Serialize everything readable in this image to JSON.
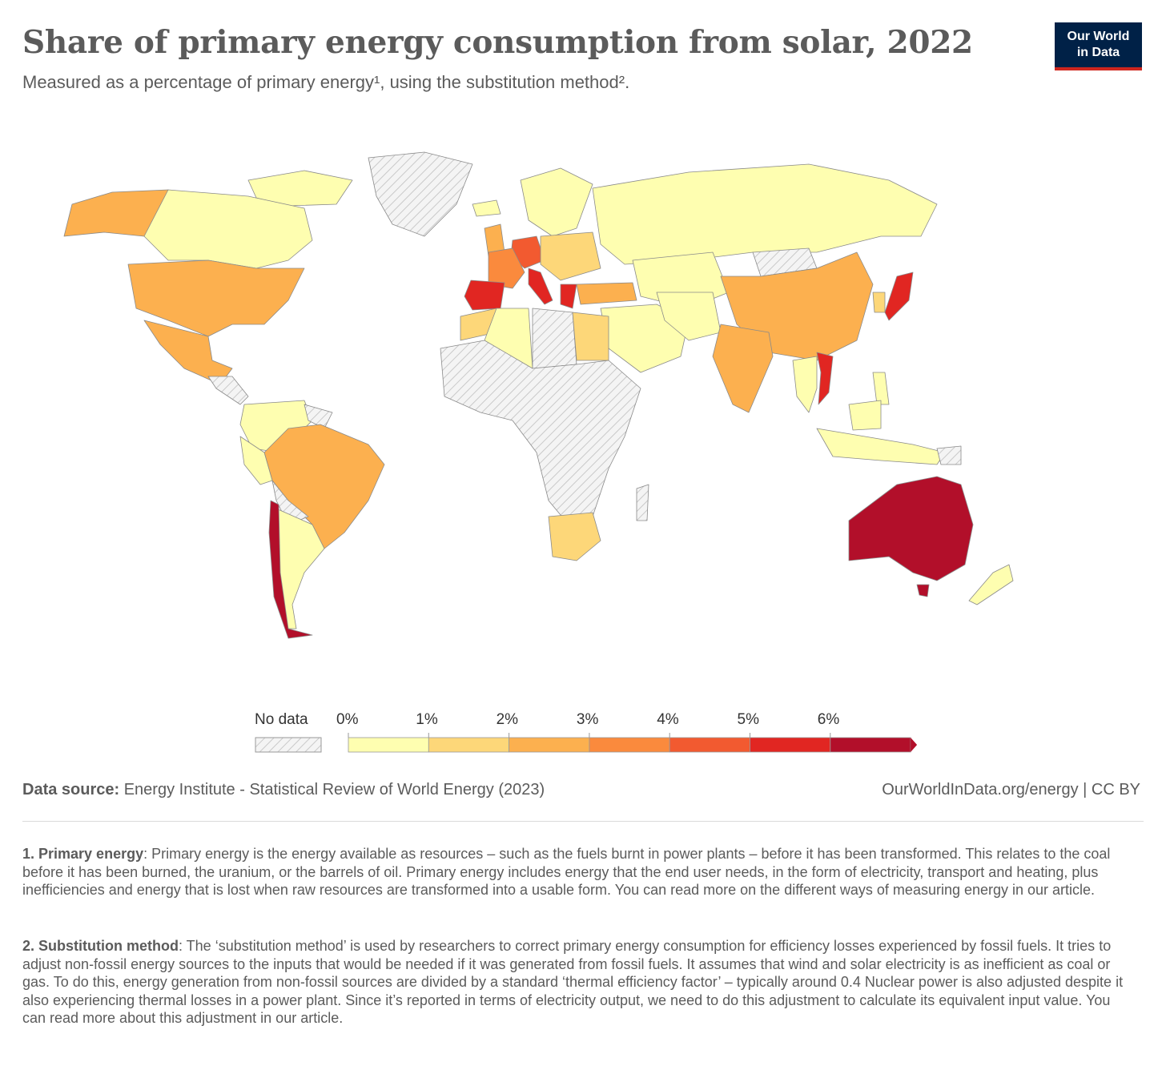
{
  "header": {
    "title": "Share of primary energy consumption from solar, 2022",
    "subtitle": "Measured as a percentage of primary energy¹, using the substitution method².",
    "logo_line1": "Our World",
    "logo_line2": "in Data"
  },
  "legend": {
    "no_data_label": "No data",
    "bins": [
      "0%",
      "1%",
      "2%",
      "3%",
      "4%",
      "5%",
      "6%"
    ],
    "colors": [
      "#fefeb0",
      "#fdd779",
      "#fcb04f",
      "#fa8a3d",
      "#f25a30",
      "#e12622",
      "#b20f2a"
    ],
    "no_data_color": "#cccccc"
  },
  "footer": {
    "source_label": "Data source:",
    "source_text": "Energy Institute - Statistical Review of World Energy (2023)",
    "url": "OurWorldInData.org/energy | CC BY"
  },
  "notes": [
    {
      "label": "1. Primary energy",
      "text": ": Primary energy is the energy available as resources – such as the fuels burnt in power plants – before it has been transformed. This relates to the coal before it has been burned, the uranium, or the barrels of oil. Primary energy includes energy that the end user needs, in the form of electricity, transport and heating, plus inefficiencies and energy that is lost when raw resources are transformed into a usable form. You can read more on the different ways of measuring energy in our article."
    },
    {
      "label": "2. Substitution method",
      "text": ": The ‘substitution method’ is used by researchers to correct primary energy consumption for efficiency losses experienced by fossil fuels. It tries to adjust non-fossil energy sources to the inputs that would be needed if it was generated from fossil fuels. It assumes that wind and solar electricity is as inefficient as coal or gas. To do this, energy generation from non-fossil sources are divided by a standard ‘thermal efficiency factor’ – typically around 0.4 Nuclear power is also adjusted despite it also experiencing thermal losses in a power plant. Since it’s reported in terms of electricity output, we need to do this adjustment to calculate its equivalent input value. You can read more about this adjustment in our article."
    }
  ]
}
